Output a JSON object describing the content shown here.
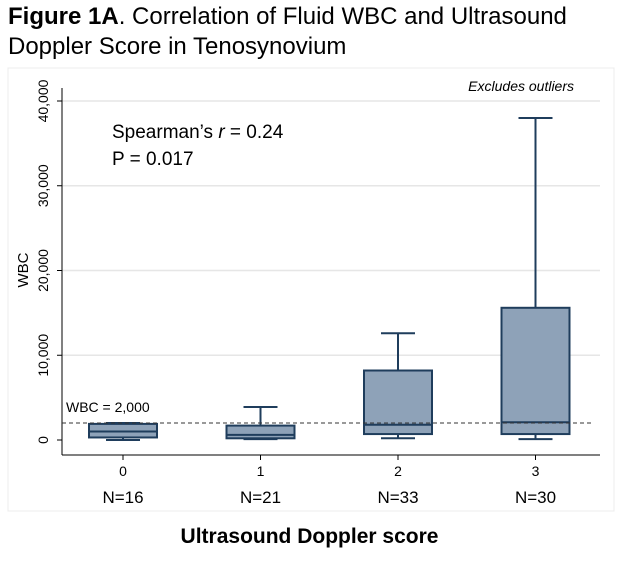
{
  "figure_label": "Figure 1A",
  "title_rest": ". Correlation of Fluid WBC and Ultrasound Doppler Score in Tenosynovium",
  "chart_data": {
    "type": "box",
    "categories": [
      "0",
      "1",
      "2",
      "3"
    ],
    "n_labels": [
      "N=16",
      "N=21",
      "N=33",
      "N=30"
    ],
    "xlabel": "Ultrasound Doppler score",
    "ylabel": "WBC",
    "ylim": [
      0,
      40000
    ],
    "yticks": [
      0,
      10000,
      20000,
      30000,
      40000
    ],
    "ytick_labels": [
      "0",
      "10,000",
      "20,000",
      "30,000",
      "40,000"
    ],
    "grid": true,
    "boxes": [
      {
        "category": "0",
        "min": 0,
        "q1": 300,
        "median": 1000,
        "q3": 1900,
        "max": 2000
      },
      {
        "category": "1",
        "min": 100,
        "q1": 200,
        "median": 600,
        "q3": 1700,
        "max": 3900
      },
      {
        "category": "2",
        "min": 200,
        "q1": 700,
        "median": 1800,
        "q3": 8200,
        "max": 12600
      },
      {
        "category": "3",
        "min": 100,
        "q1": 700,
        "median": 2100,
        "q3": 15600,
        "max": 38000
      }
    ],
    "reference_line": {
      "value": 2000,
      "label": "WBC = 2,000"
    },
    "annotations": {
      "note": "Excludes outliers",
      "stat_prefix": "Spearman’s ",
      "stat_symbol": "r",
      "stat_value": " = 0.24",
      "p_value": "P = 0.017"
    },
    "colors": {
      "box_fill": "#8ea2b8",
      "box_edge": "#1f3d5c",
      "grid": "#e6e6e6",
      "reference": "#333333"
    }
  }
}
